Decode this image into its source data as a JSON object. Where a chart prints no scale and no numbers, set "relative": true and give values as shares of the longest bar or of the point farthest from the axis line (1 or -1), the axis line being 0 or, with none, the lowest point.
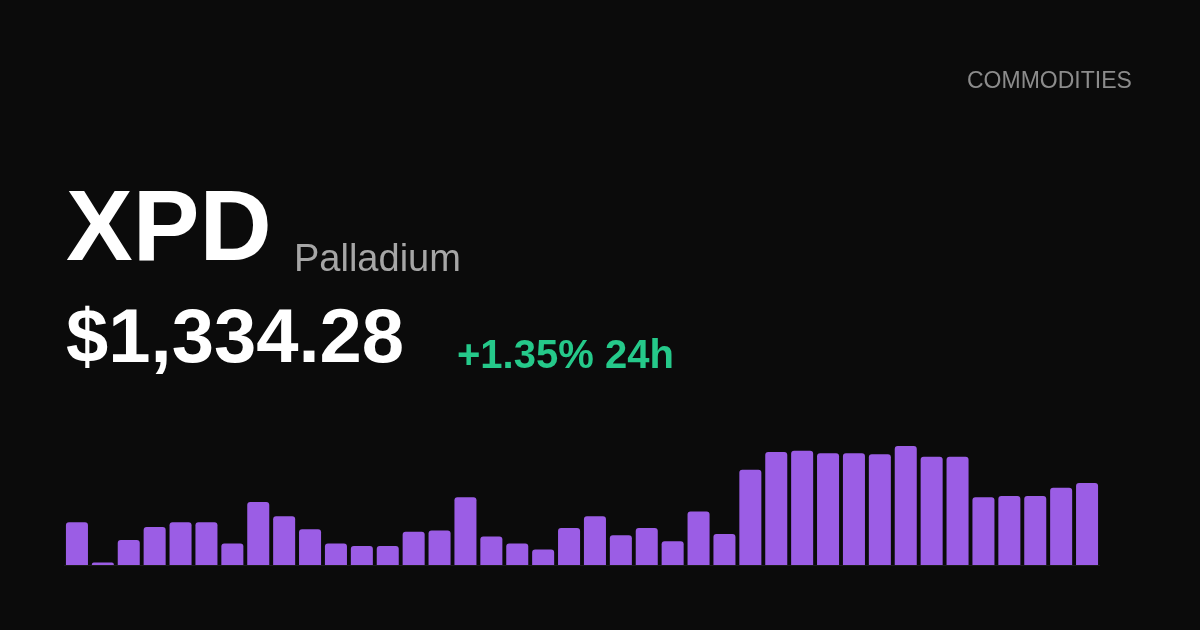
{
  "chart_data": {
    "type": "bar",
    "title": "XPD",
    "subtitle": "Palladium",
    "annotations": [
      "COMMODITIES",
      "$1,334.28",
      "+1.35% 24h"
    ],
    "categories": [
      null,
      null,
      null,
      null,
      null,
      null,
      null,
      null,
      null,
      null,
      null,
      null,
      null,
      null,
      null,
      null,
      null,
      null,
      null,
      null,
      null,
      null,
      null,
      null,
      null,
      null,
      null,
      null,
      null,
      null,
      null,
      null,
      null,
      null,
      null,
      null,
      null,
      null,
      null,
      null
    ],
    "values": [
      0.36,
      0.02,
      0.21,
      0.32,
      0.36,
      0.36,
      0.18,
      0.53,
      0.41,
      0.3,
      0.18,
      0.16,
      0.16,
      0.28,
      0.29,
      0.57,
      0.24,
      0.18,
      0.13,
      0.31,
      0.41,
      0.25,
      0.31,
      0.2,
      0.45,
      0.26,
      0.8,
      0.95,
      0.96,
      0.94,
      0.94,
      0.93,
      1,
      0.91,
      0.91,
      0.57,
      0.58,
      0.58,
      0.65,
      0.69
    ],
    "color": "#9b5de5",
    "relative": true
  }
}
